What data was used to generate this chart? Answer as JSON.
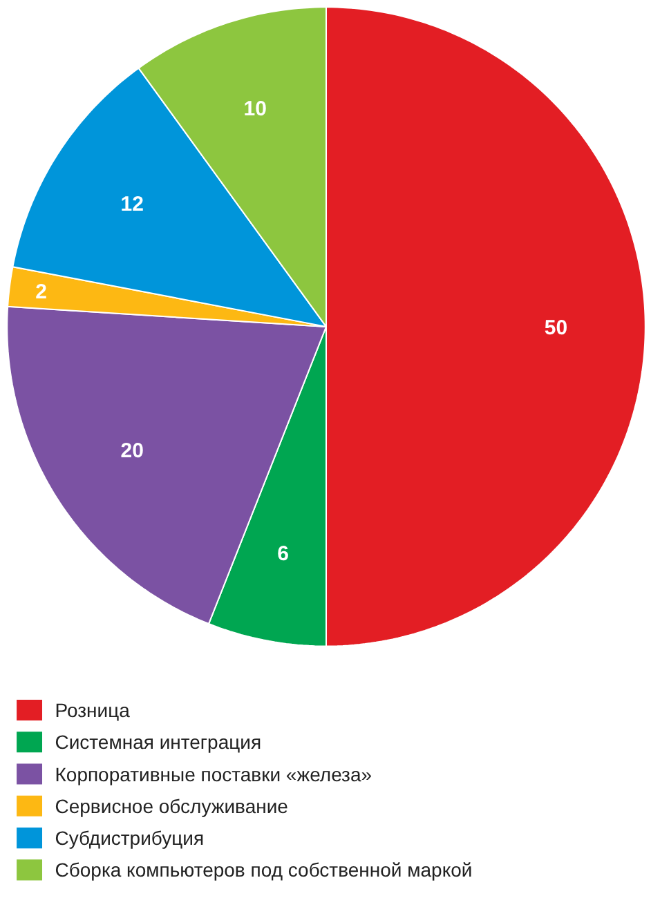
{
  "chart_data": {
    "type": "pie",
    "categories": [
      "Розница",
      "Системная интеграция",
      "Корпоративные поставки «железа»",
      "Сервисное обслуживание",
      "Субдистрибуция",
      "Сборка компьютеров под собственной маркой"
    ],
    "values": [
      50,
      6,
      20,
      2,
      12,
      10
    ],
    "colors": [
      "#e31e24",
      "#00a651",
      "#7b52a3",
      "#fdb813",
      "#0095da",
      "#8dc63f"
    ],
    "data_labels": true,
    "legend": "bottom"
  }
}
